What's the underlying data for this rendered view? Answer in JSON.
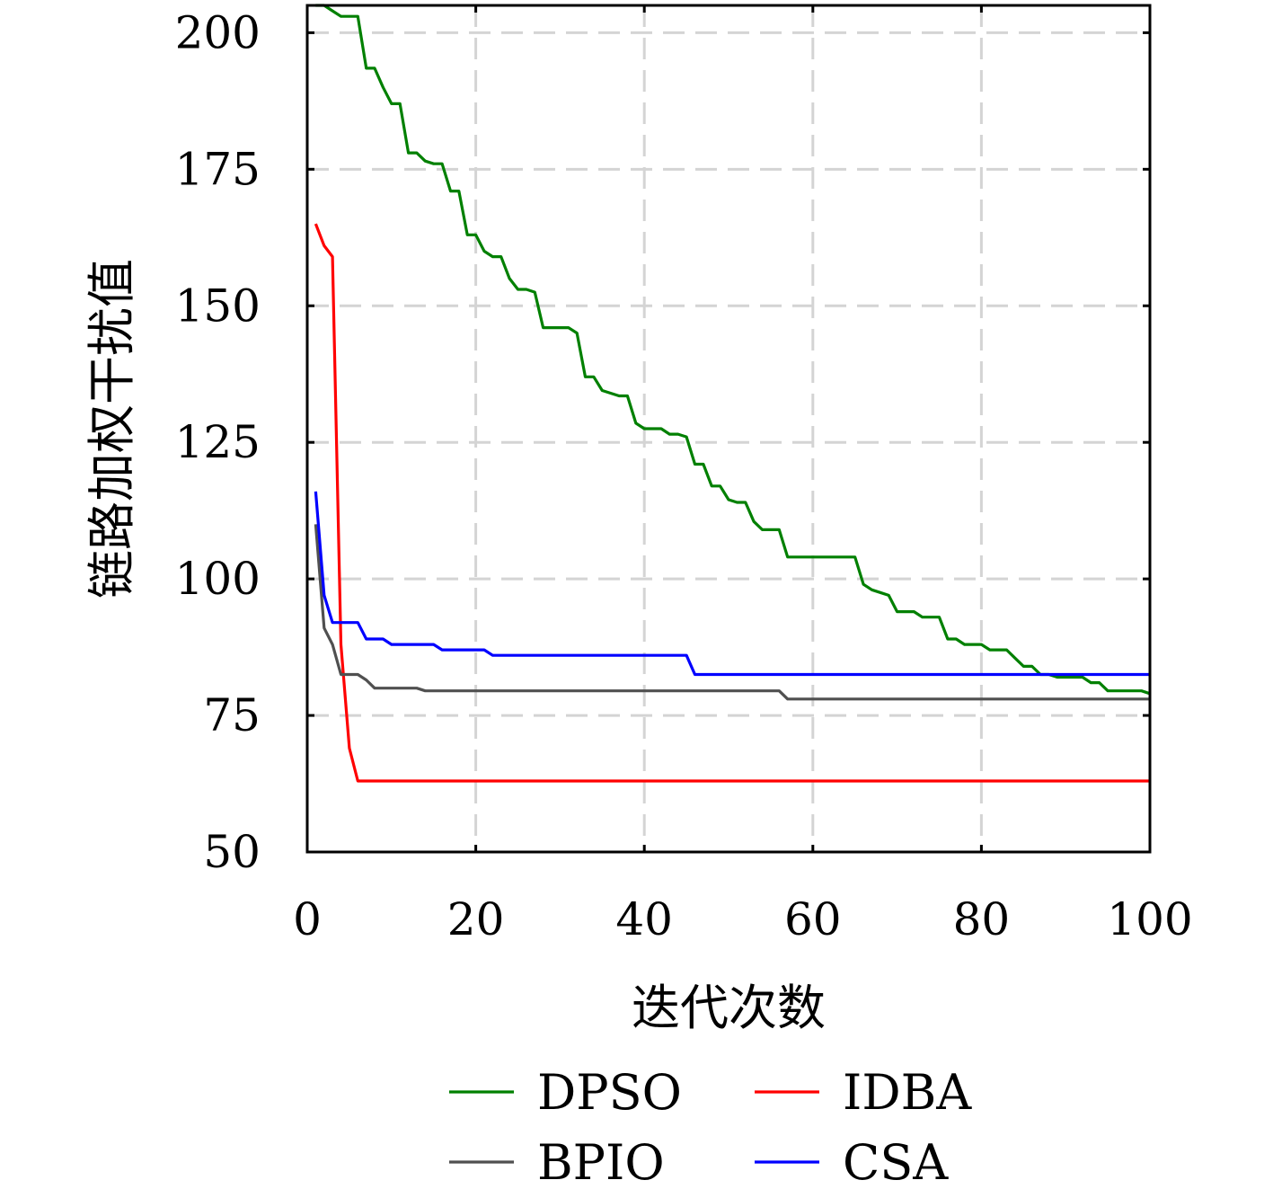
{
  "chart_data": {
    "type": "line",
    "title": "",
    "xlabel": "迭代次数",
    "ylabel": "链路加权干扰值",
    "xlim": [
      0,
      100
    ],
    "ylim": [
      50,
      205
    ],
    "xticks": [
      0,
      20,
      40,
      60,
      80,
      100
    ],
    "yticks": [
      50,
      75,
      100,
      125,
      150,
      175,
      200
    ],
    "grid": true,
    "legend_position": "bottom",
    "series": [
      {
        "name": "DPSO",
        "color": "#008000",
        "x": [
          1,
          2,
          3,
          4,
          5,
          6,
          7,
          8,
          9,
          10,
          11,
          12,
          13,
          14,
          15,
          16,
          17,
          18,
          19,
          20,
          21,
          22,
          23,
          24,
          25,
          26,
          27,
          28,
          29,
          30,
          31,
          32,
          33,
          34,
          35,
          36,
          37,
          38,
          39,
          40,
          41,
          42,
          43,
          44,
          45,
          46,
          47,
          48,
          49,
          50,
          51,
          52,
          53,
          54,
          55,
          56,
          57,
          58,
          59,
          60,
          61,
          62,
          63,
          64,
          65,
          66,
          67,
          68,
          69,
          70,
          71,
          72,
          73,
          74,
          75,
          76,
          77,
          78,
          79,
          80,
          81,
          82,
          83,
          84,
          85,
          86,
          87,
          88,
          89,
          90,
          91,
          92,
          93,
          94,
          95,
          96,
          97,
          98,
          99,
          100
        ],
        "y": [
          205,
          205,
          204,
          203,
          203,
          203,
          193.5,
          193.5,
          190,
          187,
          187,
          178,
          178,
          176.5,
          176,
          176,
          171,
          171,
          163,
          163,
          160,
          159,
          159,
          155,
          153,
          153,
          152.5,
          146,
          146,
          146,
          146,
          145,
          137,
          137,
          134.5,
          134,
          133.5,
          133.5,
          128.5,
          127.5,
          127.5,
          127.5,
          126.5,
          126.5,
          126,
          121,
          121,
          117,
          117,
          114.5,
          114,
          114,
          110.5,
          109,
          109,
          109,
          104,
          104,
          104,
          104,
          104,
          104,
          104,
          104,
          104,
          99,
          98,
          97.5,
          97,
          94,
          94,
          94,
          93,
          93,
          93,
          89,
          89,
          88,
          88,
          88,
          87,
          87,
          87,
          85.5,
          84,
          84,
          82.5,
          82.5,
          82,
          82,
          82,
          82,
          81,
          81,
          79.5,
          79.5,
          79.5,
          79.5,
          79.5,
          79
        ]
      },
      {
        "name": "IDBA",
        "color": "#ff0000",
        "x": [
          1,
          2,
          3,
          4,
          5,
          6,
          7,
          8,
          9,
          10,
          11,
          12,
          13,
          14,
          15,
          16,
          17,
          18,
          19,
          20,
          21,
          22,
          23,
          24,
          25,
          26,
          27,
          28,
          29,
          30,
          31,
          32,
          33,
          34,
          35,
          36,
          37,
          38,
          39,
          40,
          41,
          42,
          43,
          44,
          45,
          46,
          47,
          48,
          49,
          50,
          51,
          52,
          53,
          54,
          55,
          56,
          57,
          58,
          59,
          60,
          61,
          62,
          63,
          64,
          65,
          66,
          67,
          68,
          69,
          70,
          71,
          72,
          73,
          74,
          75,
          76,
          77,
          78,
          79,
          80,
          81,
          82,
          83,
          84,
          85,
          86,
          87,
          88,
          89,
          90,
          91,
          92,
          93,
          94,
          95,
          96,
          97,
          98,
          99,
          100
        ],
        "y": [
          165,
          161,
          159,
          88,
          69,
          63,
          63,
          63,
          63,
          63,
          63,
          63,
          63,
          63,
          63,
          63,
          63,
          63,
          63,
          63,
          63,
          63,
          63,
          63,
          63,
          63,
          63,
          63,
          63,
          63,
          63,
          63,
          63,
          63,
          63,
          63,
          63,
          63,
          63,
          63,
          63,
          63,
          63,
          63,
          63,
          63,
          63,
          63,
          63,
          63,
          63,
          63,
          63,
          63,
          63,
          63,
          63,
          63,
          63,
          63,
          63,
          63,
          63,
          63,
          63,
          63,
          63,
          63,
          63,
          63,
          63,
          63,
          63,
          63,
          63,
          63,
          63,
          63,
          63,
          63,
          63,
          63,
          63,
          63,
          63,
          63,
          63,
          63,
          63,
          63,
          63,
          63,
          63,
          63,
          63,
          63,
          63,
          63,
          63,
          63
        ]
      },
      {
        "name": "BPIO",
        "color": "#505050",
        "x": [
          1,
          2,
          3,
          4,
          5,
          6,
          7,
          8,
          9,
          10,
          11,
          12,
          13,
          14,
          15,
          16,
          17,
          18,
          19,
          20,
          21,
          22,
          23,
          24,
          25,
          26,
          27,
          28,
          29,
          30,
          31,
          32,
          33,
          34,
          35,
          36,
          37,
          38,
          39,
          40,
          41,
          42,
          43,
          44,
          45,
          46,
          47,
          48,
          49,
          50,
          51,
          52,
          53,
          54,
          55,
          56,
          57,
          58,
          59,
          60,
          61,
          62,
          63,
          64,
          65,
          66,
          67,
          68,
          69,
          70,
          71,
          72,
          73,
          74,
          75,
          76,
          77,
          78,
          79,
          80,
          81,
          82,
          83,
          84,
          85,
          86,
          87,
          88,
          89,
          90,
          91,
          92,
          93,
          94,
          95,
          96,
          97,
          98,
          99,
          100
        ],
        "y": [
          110,
          91,
          88,
          82.5,
          82.5,
          82.5,
          81.5,
          80,
          80,
          80,
          80,
          80,
          80,
          79.5,
          79.5,
          79.5,
          79.5,
          79.5,
          79.5,
          79.5,
          79.5,
          79.5,
          79.5,
          79.5,
          79.5,
          79.5,
          79.5,
          79.5,
          79.5,
          79.5,
          79.5,
          79.5,
          79.5,
          79.5,
          79.5,
          79.5,
          79.5,
          79.5,
          79.5,
          79.5,
          79.5,
          79.5,
          79.5,
          79.5,
          79.5,
          79.5,
          79.5,
          79.5,
          79.5,
          79.5,
          79.5,
          79.5,
          79.5,
          79.5,
          79.5,
          79.5,
          78,
          78,
          78,
          78,
          78,
          78,
          78,
          78,
          78,
          78,
          78,
          78,
          78,
          78,
          78,
          78,
          78,
          78,
          78,
          78,
          78,
          78,
          78,
          78,
          78,
          78,
          78,
          78,
          78,
          78,
          78,
          78,
          78,
          78,
          78,
          78,
          78,
          78,
          78,
          78,
          78,
          78,
          78,
          78
        ]
      },
      {
        "name": "CSA",
        "color": "#0000ff",
        "x": [
          1,
          2,
          3,
          4,
          5,
          6,
          7,
          8,
          9,
          10,
          11,
          12,
          13,
          14,
          15,
          16,
          17,
          18,
          19,
          20,
          21,
          22,
          23,
          24,
          25,
          26,
          27,
          28,
          29,
          30,
          31,
          32,
          33,
          34,
          35,
          36,
          37,
          38,
          39,
          40,
          41,
          42,
          43,
          44,
          45,
          46,
          47,
          48,
          49,
          50,
          51,
          52,
          53,
          54,
          55,
          56,
          57,
          58,
          59,
          60,
          61,
          62,
          63,
          64,
          65,
          66,
          67,
          68,
          69,
          70,
          71,
          72,
          73,
          74,
          75,
          76,
          77,
          78,
          79,
          80,
          81,
          82,
          83,
          84,
          85,
          86,
          87,
          88,
          89,
          90,
          91,
          92,
          93,
          94,
          95,
          96,
          97,
          98,
          99,
          100
        ],
        "y": [
          116,
          97,
          92,
          92,
          92,
          92,
          89,
          89,
          89,
          88,
          88,
          88,
          88,
          88,
          88,
          87,
          87,
          87,
          87,
          87,
          87,
          86,
          86,
          86,
          86,
          86,
          86,
          86,
          86,
          86,
          86,
          86,
          86,
          86,
          86,
          86,
          86,
          86,
          86,
          86,
          86,
          86,
          86,
          86,
          86,
          82.5,
          82.5,
          82.5,
          82.5,
          82.5,
          82.5,
          82.5,
          82.5,
          82.5,
          82.5,
          82.5,
          82.5,
          82.5,
          82.5,
          82.5,
          82.5,
          82.5,
          82.5,
          82.5,
          82.5,
          82.5,
          82.5,
          82.5,
          82.5,
          82.5,
          82.5,
          82.5,
          82.5,
          82.5,
          82.5,
          82.5,
          82.5,
          82.5,
          82.5,
          82.5,
          82.5,
          82.5,
          82.5,
          82.5,
          82.5,
          82.5,
          82.5,
          82.5,
          82.5,
          82.5,
          82.5,
          82.5,
          82.5,
          82.5,
          82.5,
          82.5,
          82.5,
          82.5,
          82.5,
          82.5
        ]
      }
    ]
  }
}
